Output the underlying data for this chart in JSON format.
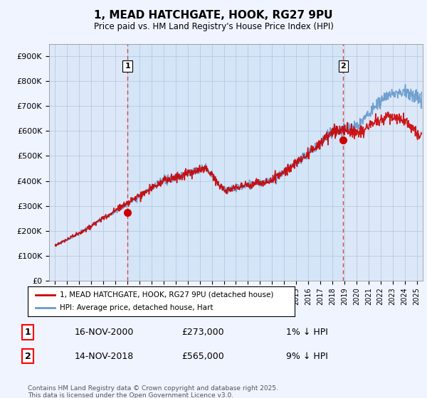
{
  "title": "1, MEAD HATCHGATE, HOOK, RG27 9PU",
  "subtitle": "Price paid vs. HM Land Registry's House Price Index (HPI)",
  "xlim": [
    1994.5,
    2025.5
  ],
  "ylim": [
    0,
    950000
  ],
  "yticks": [
    0,
    100000,
    200000,
    300000,
    400000,
    500000,
    600000,
    700000,
    800000,
    900000
  ],
  "ytick_labels": [
    "£0",
    "£100K",
    "£200K",
    "£300K",
    "£400K",
    "£500K",
    "£600K",
    "£700K",
    "£800K",
    "£900K"
  ],
  "sale1": {
    "date_num": 2001.0,
    "price": 273000,
    "label": "1",
    "date_str": "16-NOV-2000",
    "pct": "1%"
  },
  "sale2": {
    "date_num": 2018.9,
    "price": 565000,
    "label": "2",
    "date_str": "14-NOV-2018",
    "pct": "9%"
  },
  "legend_line1": "1, MEAD HATCHGATE, HOOK, RG27 9PU (detached house)",
  "legend_line2": "HPI: Average price, detached house, Hart",
  "footer": "Contains HM Land Registry data © Crown copyright and database right 2025.\nThis data is licensed under the Open Government Licence v3.0.",
  "bg_color": "#f0f4ff",
  "plot_bg_color": "#dce8f8",
  "grid_color": "#b0c4de",
  "hpi_color": "#6699cc",
  "price_color": "#cc0000",
  "vline_color": "#dd4444",
  "marker_color": "#cc0000",
  "shade_color": "#cce0f0"
}
